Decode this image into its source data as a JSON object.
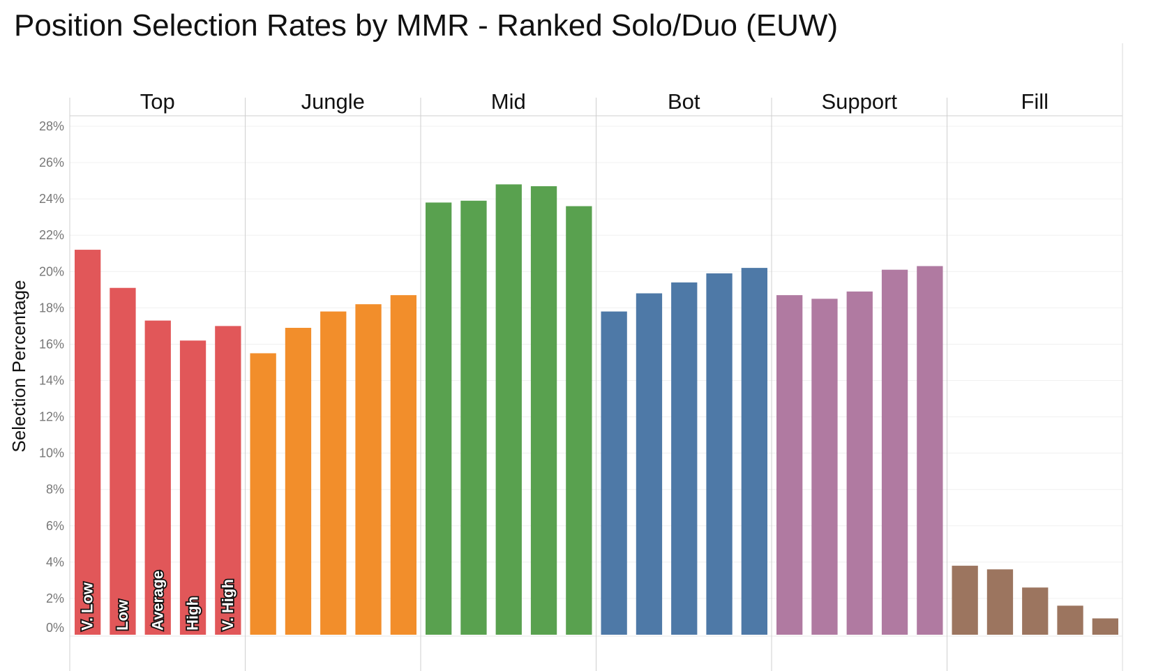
{
  "chart_data": {
    "type": "bar",
    "title": "Position Selection Rates by MMR - Ranked Solo/Duo (EUW)",
    "ylabel": "Selection Percentage",
    "xlabel": "",
    "ylim": [
      0,
      28.5
    ],
    "yticks": [
      0,
      2,
      4,
      6,
      8,
      10,
      12,
      14,
      16,
      18,
      20,
      22,
      24,
      26,
      28
    ],
    "ytick_labels": [
      "0%",
      "2%",
      "4%",
      "6%",
      "8%",
      "10%",
      "12%",
      "14%",
      "16%",
      "18%",
      "20%",
      "22%",
      "24%",
      "26%",
      "28%"
    ],
    "grid": true,
    "categories": [
      "V. Low",
      "Low",
      "Average",
      "High",
      "V. High"
    ],
    "category_labels_shown_in": "Top",
    "panels": [
      {
        "name": "Top",
        "color": "#e15759",
        "values": [
          21.2,
          19.1,
          17.3,
          16.2,
          17.0
        ]
      },
      {
        "name": "Jungle",
        "color": "#f28e2b",
        "values": [
          15.5,
          16.9,
          17.8,
          18.2,
          18.7
        ]
      },
      {
        "name": "Mid",
        "color": "#59a14f",
        "values": [
          23.8,
          23.9,
          24.8,
          24.7,
          23.6
        ]
      },
      {
        "name": "Bot",
        "color": "#4e79a7",
        "values": [
          17.8,
          18.8,
          19.4,
          19.9,
          20.2
        ]
      },
      {
        "name": "Support",
        "color": "#b07aa1",
        "values": [
          18.7,
          18.5,
          18.9,
          20.1,
          20.3
        ]
      },
      {
        "name": "Fill",
        "color": "#9c755f",
        "values": [
          3.8,
          3.6,
          2.6,
          1.6,
          0.9
        ]
      }
    ]
  }
}
